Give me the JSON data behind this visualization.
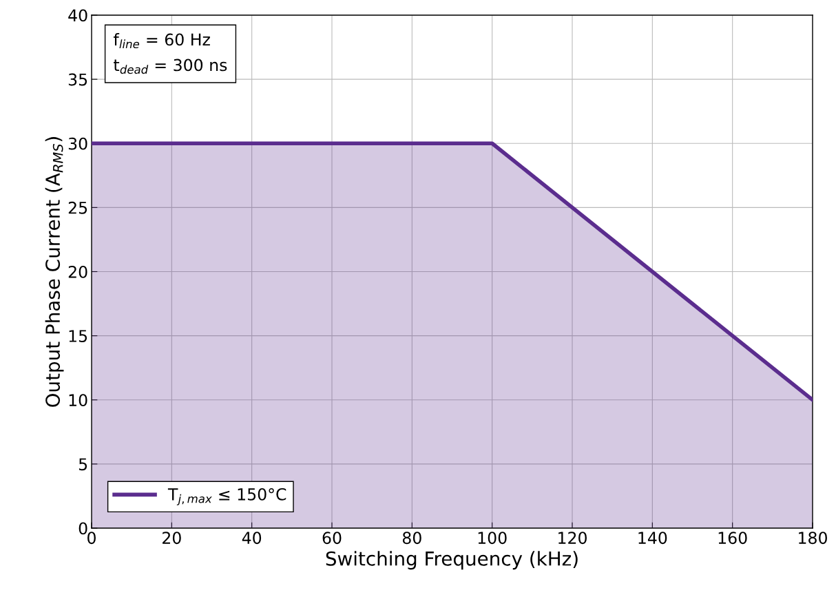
{
  "chart_data": {
    "type": "area",
    "xlabel": "Switching Frequency (kHz)",
    "ylabel": "Output Phase Current (A$_{RMS}$)",
    "annotations": [
      "f$_{line}$ = 60 Hz",
      "t$_{dead}$ = 300 ns"
    ],
    "x": [
      0,
      100,
      180
    ],
    "series": [
      {
        "name": "T$_{j,max}$ ≤ 150°C",
        "color": "#5b2d8e",
        "values": [
          30,
          30,
          10
        ]
      }
    ],
    "xlim": [
      0,
      180
    ],
    "xticks": [
      0,
      20,
      40,
      60,
      80,
      100,
      120,
      140,
      160,
      180
    ],
    "ylim": [
      0,
      40
    ],
    "yticks": [
      0,
      5,
      10,
      15,
      20,
      25,
      30,
      35,
      40
    ],
    "grid": true,
    "legend": "bottom left"
  }
}
